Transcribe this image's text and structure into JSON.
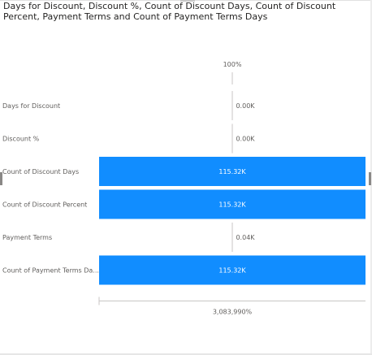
{
  "visual": {
    "title": "Days for Discount, Discount %, Count of Discount Days, Count of Discount Percent, Payment Terms and Count of Payment Terms Days"
  },
  "chart_data": {
    "type": "bar",
    "orientation": "horizontal",
    "title": "Days for Discount, Discount %, Count of Discount Days, Count of Discount Percent, Payment Terms and Count of Payment Terms Days",
    "categories": [
      "Days for Discount",
      "Discount %",
      "Count of Discount Days",
      "Count of Discount Percent",
      "Payment Terms",
      "Count of Payment Terms Da..."
    ],
    "values": [
      0.0,
      0.0,
      115.32,
      115.32,
      0.04,
      115.32
    ],
    "value_unit": "K",
    "data_labels": [
      "0.00K",
      "0.00K",
      "115.32K",
      "115.32K",
      "0.04K",
      "115.32K"
    ],
    "top_axis_label": "100%",
    "bottom_axis_label": "3,083,990%",
    "bar_color": "#118dff",
    "label_color_inside": "#ffffff",
    "label_color_outside": "#605e5c"
  }
}
